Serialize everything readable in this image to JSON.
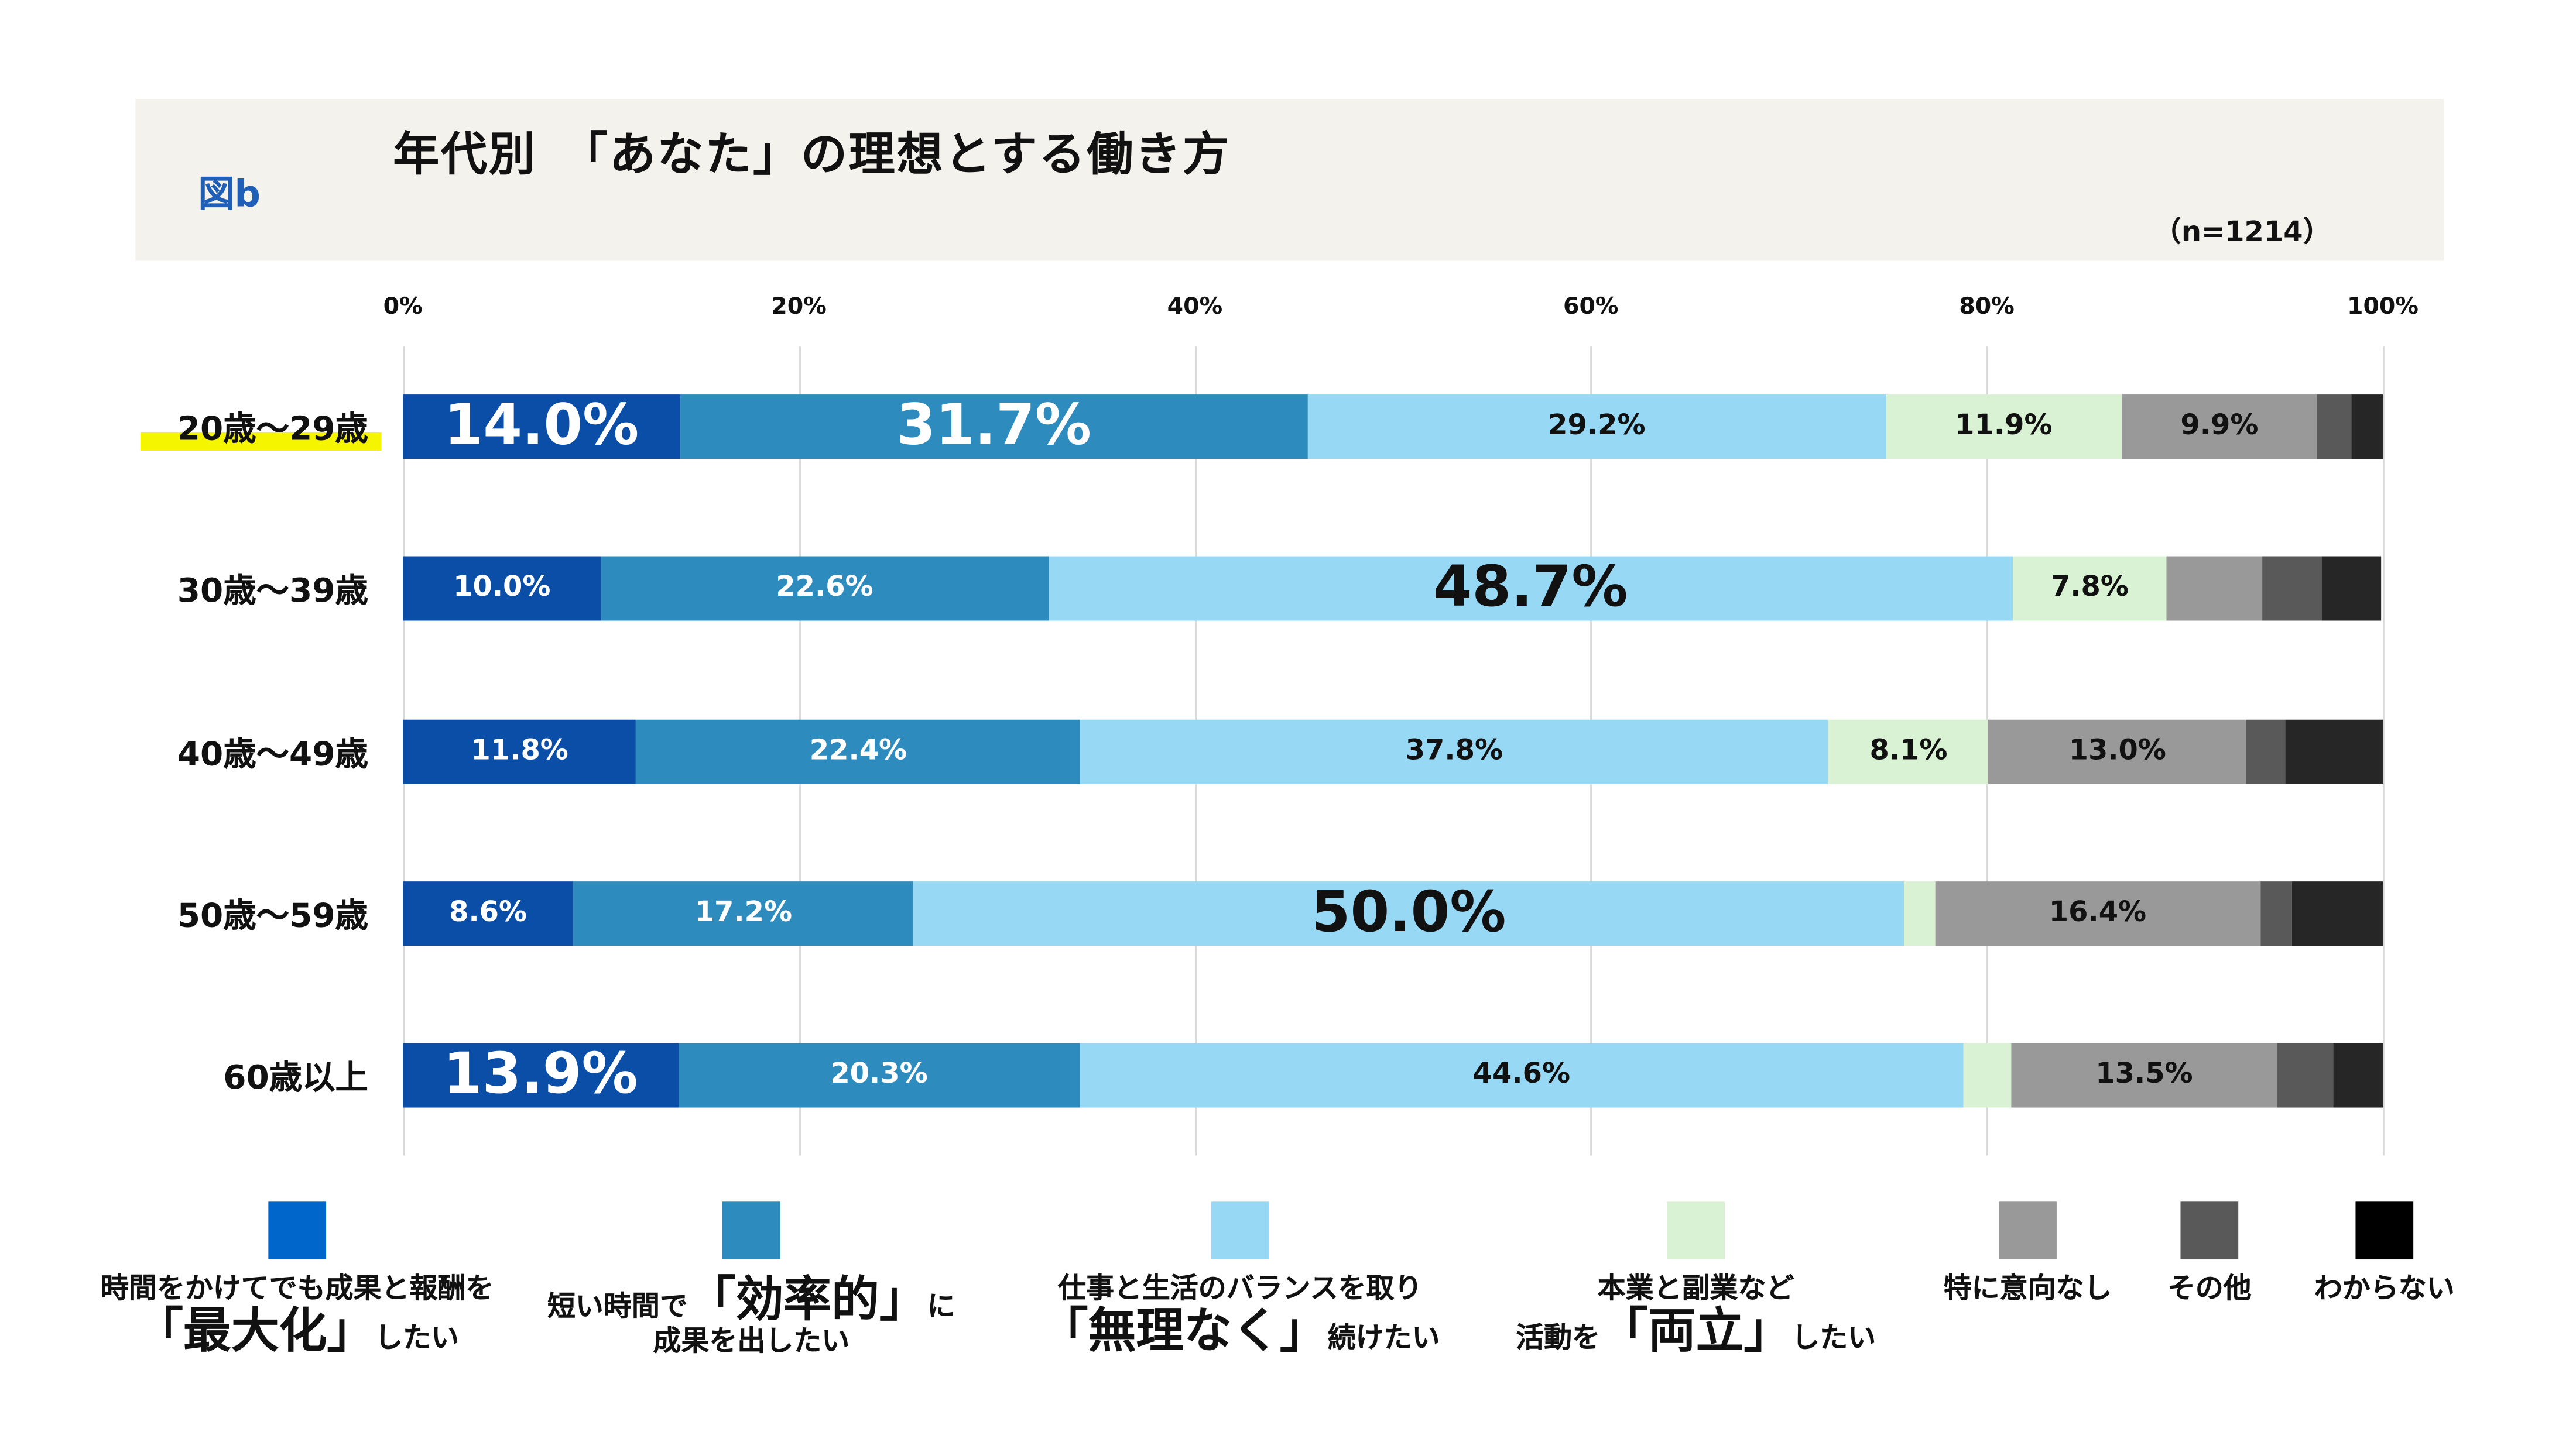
{
  "header": {
    "figure_label": "図b",
    "title": "年代別　「あなた」の理想とする働き方",
    "n_label": "（n=1214）"
  },
  "chart_data": {
    "type": "bar",
    "orientation": "horizontal",
    "stacked": true,
    "title": "年代別　「あなた」の理想とする働き方",
    "xlim": [
      0,
      100
    ],
    "x_ticks": [
      "0%",
      "20%",
      "40%",
      "60%",
      "80%",
      "100%"
    ],
    "grid": true,
    "legend_position": "bottom",
    "categories": [
      "20歳～29歳",
      "30歳～39歳",
      "40歳～49歳",
      "50歳～59歳",
      "60歳以上"
    ],
    "highlighted_category": "20歳～29歳",
    "series": [
      {
        "name": "時間をかけてでも成果と報酬を「最大化」したい",
        "color": "#0B4EA8",
        "legend_color": "#0066CC",
        "values": [
          14.0,
          10.0,
          11.8,
          8.6,
          13.9
        ],
        "labels": [
          "14.0%",
          "10.0%",
          "11.8%",
          "8.6%",
          "13.9%"
        ],
        "label_color": "#ffffff"
      },
      {
        "name": "短い時間で「効率的」に成果を出したい",
        "color": "#2E8BBE",
        "legend_color": "#2E8BBE",
        "values": [
          31.7,
          22.6,
          22.4,
          17.2,
          20.3
        ],
        "labels": [
          "31.7%",
          "22.6%",
          "22.4%",
          "17.2%",
          "20.3%"
        ],
        "label_color": "#ffffff"
      },
      {
        "name": "仕事と生活のバランスを取り「無理なく」続けたい",
        "color": "#97D9F5",
        "legend_color": "#97D9F5",
        "values": [
          29.2,
          48.7,
          37.8,
          50.0,
          44.6
        ],
        "labels": [
          "29.2%",
          "48.7%",
          "37.8%",
          "50.0%",
          "44.6%"
        ],
        "label_color": "#111111"
      },
      {
        "name": "本業と副業など活動を「両立」したい",
        "color": "#D9F2D4",
        "legend_color": "#D9F2D4",
        "values": [
          11.9,
          7.8,
          8.1,
          1.6,
          2.4
        ],
        "labels": [
          "11.9%",
          "7.8%",
          "8.1%",
          "",
          ""
        ],
        "label_color": "#111111"
      },
      {
        "name": "特に意向なし",
        "color": "#999999",
        "legend_color": "#999999",
        "values": [
          9.9,
          4.8,
          13.0,
          16.4,
          13.5
        ],
        "labels": [
          "9.9%",
          "",
          "13.0%",
          "16.4%",
          "13.5%"
        ],
        "label_color": "#111111"
      },
      {
        "name": "その他",
        "color": "#595959",
        "legend_color": "#595959",
        "values": [
          1.7,
          3.0,
          2.0,
          1.6,
          2.8
        ],
        "labels": [
          "",
          "",
          "",
          "",
          ""
        ],
        "label_color": "#ffffff"
      },
      {
        "name": "わからない",
        "color": "#262626",
        "legend_color": "#000000",
        "values": [
          1.6,
          3.0,
          4.9,
          4.6,
          2.5
        ],
        "labels": [
          "",
          "",
          "",
          "",
          ""
        ],
        "label_color": "#ffffff"
      }
    ],
    "emphasized_labels": [
      "14.0%",
      "31.7%",
      "48.7%",
      "50.0%",
      "13.9%"
    ]
  },
  "legend": [
    {
      "lines": [
        [
          {
            "t": "時間をかけてでも成果と報酬を"
          }
        ],
        [
          {
            "t": "「最大化」",
            "big": true
          },
          {
            "t": "したい"
          }
        ]
      ]
    },
    {
      "lines": [
        [
          {
            "t": "短い時間で"
          },
          {
            "t": "「効率的」",
            "big": true
          },
          {
            "t": "に"
          }
        ],
        [
          {
            "t": "成果を出したい"
          }
        ]
      ]
    },
    {
      "lines": [
        [
          {
            "t": "仕事と生活のバランスを取り"
          }
        ],
        [
          {
            "t": "「無理なく」",
            "big": true
          },
          {
            "t": "続けたい"
          }
        ]
      ]
    },
    {
      "lines": [
        [
          {
            "t": "本業と副業など"
          }
        ],
        [
          {
            "t": "活動を"
          },
          {
            "t": "「両立」",
            "big": true
          },
          {
            "t": "したい"
          }
        ]
      ]
    },
    {
      "lines": [
        [
          {
            "t": "特に意向なし"
          }
        ]
      ]
    },
    {
      "lines": [
        [
          {
            "t": "その他"
          }
        ]
      ]
    },
    {
      "lines": [
        [
          {
            "t": "わからない"
          }
        ]
      ]
    }
  ]
}
